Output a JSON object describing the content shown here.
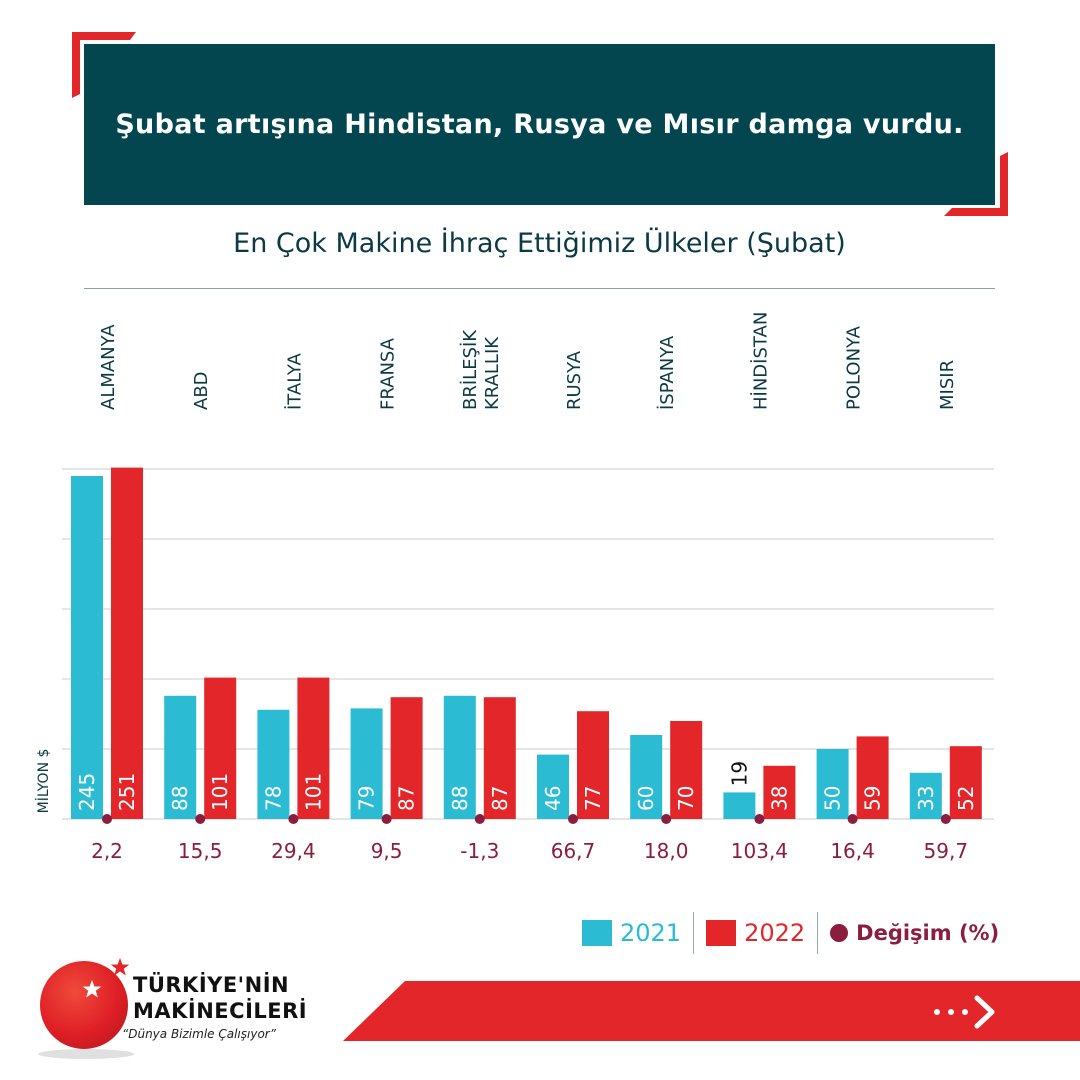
{
  "header": {
    "title": "Şubat artışına Hindistan, Rusya ve Mısır damga vurdu."
  },
  "chart_data": {
    "type": "bar",
    "title": "En Çok Makine İhraç Ettiğimiz Ülkeler (Şubat)",
    "ylabel": "MİLYON $",
    "ylim": [
      0,
      250
    ],
    "grid": true,
    "categories": [
      "ALMANYA",
      "ABD",
      "İTALYA",
      "FRANSA",
      "BRİLEŞİK KRALLIK",
      "RUSYA",
      "İSPANYA",
      "HİNDİSTAN",
      "POLONYA",
      "MISIR"
    ],
    "series": [
      {
        "name": "2021",
        "color": "#2bbcd4",
        "values": [
          245,
          88,
          78,
          79,
          88,
          46,
          60,
          19,
          50,
          33
        ]
      },
      {
        "name": "2022",
        "color": "#e3262a",
        "values": [
          251,
          101,
          101,
          87,
          87,
          77,
          70,
          38,
          59,
          52
        ]
      }
    ],
    "change_label": "Değişim (%)",
    "change_color": "#8b1e3f",
    "change": [
      "2,2",
      "15,5",
      "29,4",
      "9,5",
      "-1,3",
      "66,7",
      "18,0",
      "103,4",
      "16,4",
      "59,7"
    ]
  },
  "legend": {
    "y2021": "2021",
    "y2022": "2022",
    "change": "Değişim (%)"
  },
  "logo": {
    "line1": "TÜRKİYE'NİN",
    "line2": "MAKİNECİLERİ",
    "slogan": "“Dünya Bizimle Çalışıyor”"
  }
}
